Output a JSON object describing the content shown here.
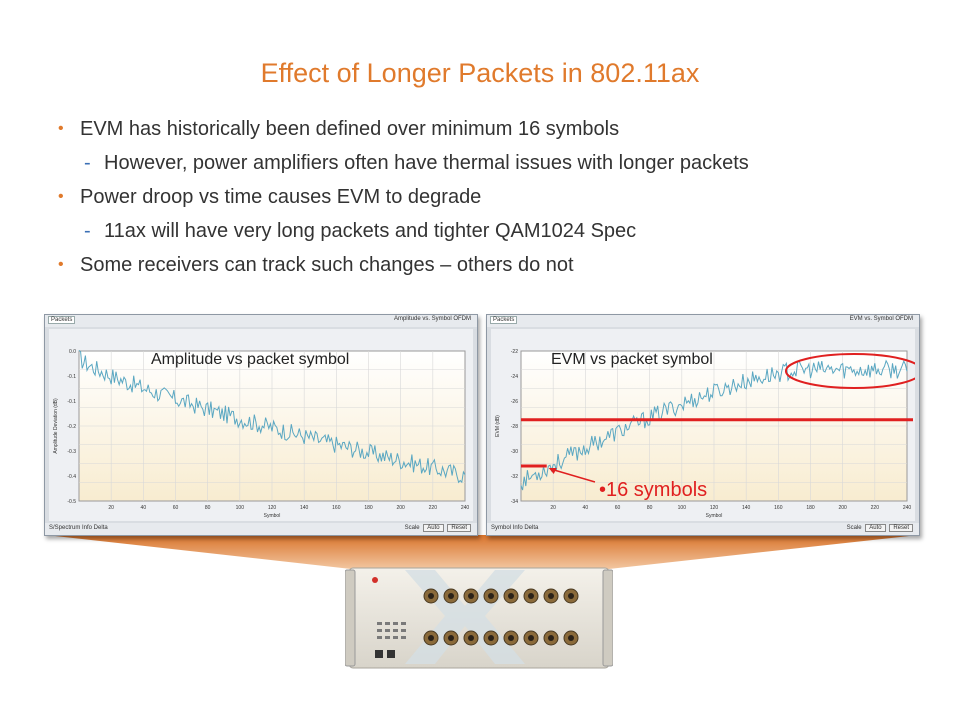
{
  "slide": {
    "title": "Effect of Longer Packets in 802.11ax",
    "bullets": [
      {
        "level": 1,
        "text": "EVM has historically been defined over minimum 16 symbols"
      },
      {
        "level": 2,
        "text": "However, power amplifiers often have thermal issues with longer packets"
      },
      {
        "level": 1,
        "text": "Power droop vs time causes EVM to degrade"
      },
      {
        "level": 2,
        "text": "11ax will have very long packets and tighter QAM1024 Spec"
      },
      {
        "level": 1,
        "text": "Some receivers can track such changes – others do not"
      }
    ],
    "bullet_glyph": "•",
    "sub_glyph": "-"
  },
  "left_window": {
    "tab": "Packets",
    "header_right": "Amplitude vs. Symbol OFDM",
    "annotation": "Amplitude  vs packet symbol",
    "footer_left": "S/Spectrum   Info   Delta",
    "footer_right_label": "Scale",
    "footer_btn_auto": "Auto",
    "footer_btn_reset": "Reset",
    "xlabel": "Symbol",
    "ylabel": "Amplitude Deviation (dB)"
  },
  "right_window": {
    "tab": "Packets",
    "header_right": "EVM vs. Symbol OFDM",
    "annotation": "EVM  vs packet symbol",
    "callout": "•16 symbols",
    "footer_left": "Symbol   Info   Delta",
    "footer_right_label": "Scale",
    "footer_btn_auto": "Auto",
    "footer_btn_reset": "Reset",
    "xlabel": "Symbol",
    "ylabel": "EVM (dB)"
  },
  "chart_data": [
    {
      "type": "line",
      "title": "Amplitude  vs packet symbol",
      "xlabel": "Symbol",
      "ylabel": "Amplitude Deviation (dB)",
      "xlim": [
        0,
        240
      ],
      "ylim": [
        -0.45,
        0.02
      ],
      "grid": true,
      "series": [
        {
          "values_description": "noisy trend from ~0.0 at symbol 0 down to ~-0.37 at symbol 240",
          "start": 0.0,
          "end": -0.37
        }
      ],
      "color": "#5aa7c2"
    },
    {
      "type": "line",
      "title": "EVM  vs packet symbol",
      "xlabel": "Symbol",
      "ylabel": "EVM (dB)",
      "xlim": [
        0,
        240
      ],
      "ylim": [
        -34,
        -22
      ],
      "grid": true,
      "series": [
        {
          "values_description": "noisy trend rising from ~-32.5 at symbol 0 to ~-23.5 at symbol 240, flattening after ~170",
          "start": -32.5,
          "end": -23.5
        }
      ],
      "color": "#5aa7c2",
      "reference_line": -27.5,
      "short_marker": -31.2,
      "highlight": "plateau region circled in red"
    }
  ],
  "colors": {
    "title": "#e07a2c",
    "bullet_dot": "#e07a2c",
    "sub_dash": "#3a6fb5",
    "trace": "#5aa7c2",
    "marker_red": "#e02020",
    "funnel": "#d9742c"
  },
  "device": {
    "icon": "instrument-chassis-icon"
  }
}
